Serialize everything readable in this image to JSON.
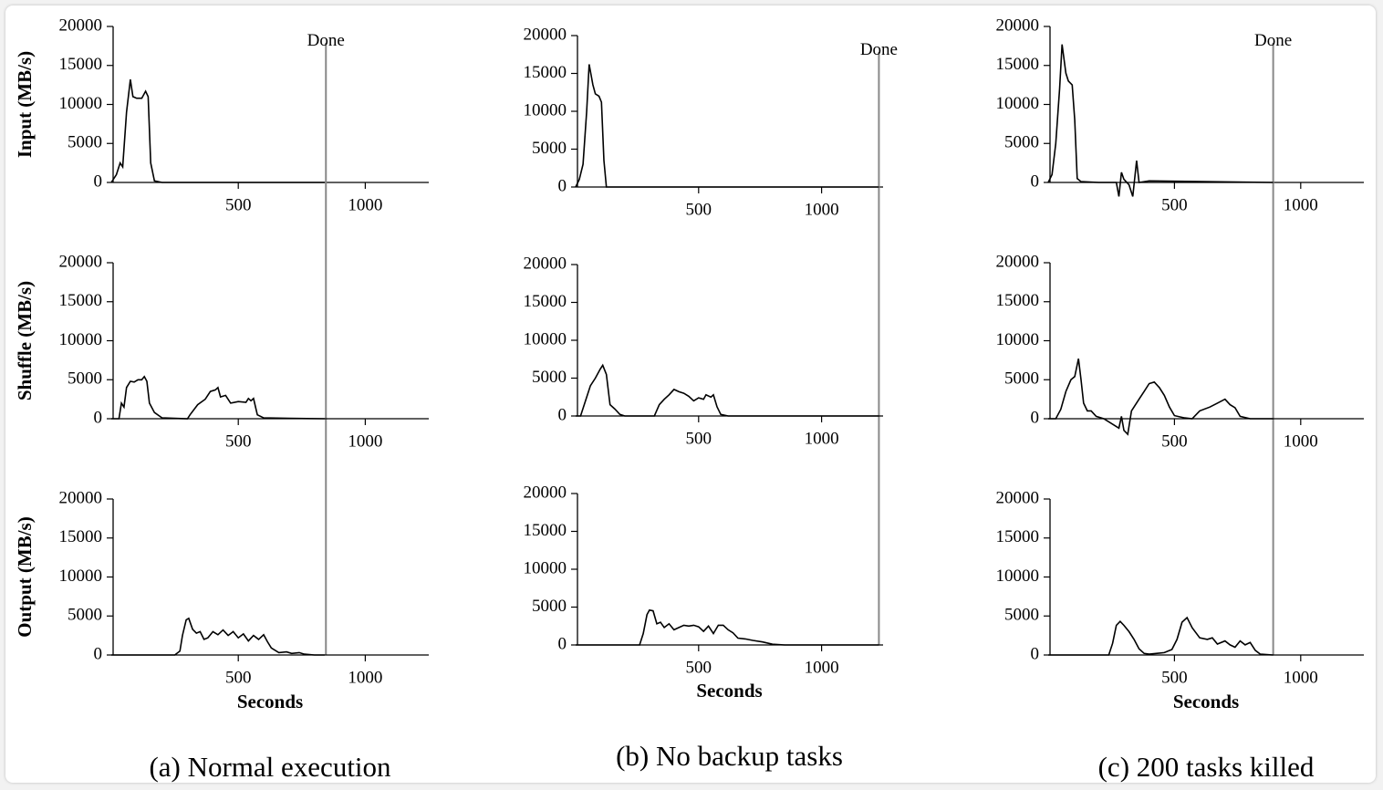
{
  "chart_data": [
    {
      "type": "line",
      "ylabel": "Input (MB/s)",
      "annotation": {
        "text": "Done",
        "x": 845
      },
      "x": [
        0,
        20,
        35,
        45,
        60,
        75,
        85,
        100,
        120,
        135,
        145,
        155,
        170,
        200,
        840
      ],
      "series": [
        {
          "color": "#000000",
          "values": [
            0,
            1000,
            2500,
            2000,
            9000,
            13200,
            11000,
            10800,
            10800,
            11700,
            11000,
            2500,
            200,
            0,
            0
          ]
        }
      ],
      "xlim": [
        0,
        1250
      ],
      "xticks": [
        500,
        1000
      ],
      "ylim": [
        0,
        20000
      ],
      "yticks": [
        0,
        5000,
        10000,
        15000,
        20000
      ]
    },
    {
      "type": "line",
      "ylabel": "Shuffle (MB/s)",
      "x": [
        0,
        30,
        40,
        50,
        60,
        75,
        90,
        105,
        120,
        130,
        140,
        150,
        170,
        200,
        300,
        310,
        340,
        370,
        390,
        410,
        420,
        430,
        450,
        470,
        500,
        530,
        540,
        550,
        560,
        575,
        600,
        700,
        840
      ],
      "series": [
        {
          "color": "#000000",
          "values": [
            0,
            0,
            2000,
            1500,
            4000,
            4800,
            4700,
            5000,
            5000,
            5400,
            4800,
            2000,
            800,
            100,
            0,
            500,
            1800,
            2500,
            3500,
            3700,
            4000,
            2800,
            3000,
            2000,
            2200,
            2100,
            2600,
            2300,
            2600,
            500,
            100,
            50,
            0
          ]
        }
      ],
      "xlim": [
        0,
        1250
      ],
      "xticks": [
        500,
        1000
      ],
      "ylim": [
        0,
        20000
      ],
      "yticks": [
        0,
        5000,
        10000,
        15000,
        20000
      ]
    },
    {
      "type": "line",
      "ylabel": "Output (MB/s)",
      "xlabel": "Seconds",
      "caption": "(a) Normal execution",
      "x": [
        0,
        250,
        270,
        280,
        295,
        305,
        320,
        335,
        350,
        365,
        380,
        400,
        420,
        440,
        460,
        480,
        500,
        520,
        540,
        560,
        580,
        600,
        615,
        630,
        660,
        690,
        710,
        740,
        760,
        800,
        840
      ],
      "series": [
        {
          "color": "#000000",
          "values": [
            0,
            0,
            500,
            2500,
            4500,
            4700,
            3300,
            2800,
            3000,
            2000,
            2200,
            3000,
            2600,
            3200,
            2500,
            3000,
            2200,
            2700,
            1800,
            2500,
            2000,
            2600,
            1700,
            900,
            300,
            400,
            200,
            300,
            100,
            0,
            0
          ]
        }
      ],
      "xlim": [
        0,
        1250
      ],
      "xticks": [
        500,
        1000
      ],
      "ylim": [
        0,
        20000
      ],
      "yticks": [
        0,
        5000,
        10000,
        15000,
        20000
      ]
    },
    {
      "type": "line",
      "annotation": {
        "text": "Done",
        "x": 1233
      },
      "x": [
        0,
        15,
        30,
        45,
        55,
        70,
        80,
        95,
        105,
        115,
        125,
        1233
      ],
      "series": [
        {
          "color": "#000000",
          "values": [
            0,
            1000,
            3000,
            10000,
            16200,
            13500,
            12300,
            12000,
            11200,
            3500,
            0,
            0
          ]
        }
      ],
      "xlim": [
        0,
        1250
      ],
      "xticks": [
        500,
        1000
      ],
      "ylim": [
        0,
        20000
      ],
      "yticks": [
        0,
        5000,
        10000,
        15000,
        20000
      ]
    },
    {
      "type": "line",
      "x": [
        0,
        20,
        40,
        60,
        80,
        100,
        110,
        125,
        140,
        160,
        180,
        200,
        320,
        340,
        360,
        380,
        400,
        420,
        440,
        460,
        480,
        500,
        520,
        530,
        550,
        560,
        575,
        590,
        620,
        1233
      ],
      "series": [
        {
          "color": "#000000",
          "values": [
            0,
            0,
            2000,
            4000,
            5000,
            6200,
            6700,
            5500,
            1500,
            900,
            200,
            0,
            0,
            1500,
            2200,
            2800,
            3500,
            3200,
            3000,
            2600,
            2000,
            2400,
            2200,
            2800,
            2500,
            2800,
            1200,
            200,
            0,
            0
          ]
        }
      ],
      "xlim": [
        0,
        1250
      ],
      "xticks": [
        500,
        1000
      ],
      "ylim": [
        0,
        20000
      ],
      "yticks": [
        0,
        5000,
        10000,
        15000,
        20000
      ]
    },
    {
      "type": "line",
      "xlabel": "Seconds",
      "caption": "(b) No backup tasks",
      "x": [
        0,
        260,
        275,
        290,
        300,
        315,
        330,
        345,
        360,
        380,
        400,
        420,
        440,
        460,
        480,
        500,
        520,
        540,
        560,
        580,
        600,
        620,
        640,
        660,
        690,
        720,
        760,
        800,
        850,
        1233
      ],
      "series": [
        {
          "color": "#000000",
          "values": [
            0,
            0,
            1500,
            4000,
            4600,
            4500,
            2800,
            3000,
            2300,
            2800,
            2000,
            2300,
            2600,
            2500,
            2600,
            2400,
            1800,
            2500,
            1500,
            2600,
            2600,
            2000,
            1600,
            900,
            800,
            600,
            400,
            100,
            0,
            0
          ]
        }
      ],
      "xlim": [
        0,
        1250
      ],
      "xticks": [
        500,
        1000
      ],
      "ylim": [
        0,
        20000
      ],
      "yticks": [
        0,
        5000,
        10000,
        15000,
        20000
      ]
    },
    {
      "type": "line",
      "annotation": {
        "text": "Done",
        "x": 891
      },
      "x": [
        0,
        15,
        30,
        45,
        55,
        70,
        80,
        95,
        105,
        115,
        130,
        200,
        270,
        280,
        290,
        300,
        320,
        335,
        350,
        360,
        400,
        891
      ],
      "series": [
        {
          "color": "#000000",
          "values": [
            0,
            1000,
            5000,
            12000,
            17700,
            14000,
            13000,
            12500,
            8000,
            500,
            100,
            0,
            0,
            -1800,
            1300,
            400,
            -300,
            -1800,
            2800,
            0,
            200,
            0
          ]
        }
      ],
      "xlim": [
        0,
        1250
      ],
      "xticks": [
        500,
        1000
      ],
      "ylim": [
        0,
        20000
      ],
      "yticks": [
        0,
        5000,
        10000,
        15000,
        20000
      ]
    },
    {
      "type": "line",
      "x": [
        0,
        30,
        50,
        70,
        90,
        105,
        120,
        130,
        140,
        155,
        170,
        190,
        220,
        280,
        290,
        300,
        315,
        330,
        360,
        380,
        400,
        420,
        440,
        460,
        480,
        500,
        540,
        570,
        600,
        640,
        670,
        700,
        720,
        740,
        760,
        800,
        891
      ],
      "series": [
        {
          "color": "#000000",
          "values": [
            0,
            0,
            1200,
            3500,
            5000,
            5400,
            7700,
            5000,
            2000,
            1000,
            1000,
            300,
            0,
            -1200,
            300,
            -1500,
            -2000,
            1000,
            2500,
            3500,
            4500,
            4700,
            4000,
            3000,
            1500,
            400,
            100,
            0,
            1000,
            1500,
            2000,
            2500,
            1800,
            1400,
            300,
            0,
            0
          ]
        }
      ],
      "xlim": [
        0,
        1250
      ],
      "xticks": [
        500,
        1000
      ],
      "ylim": [
        0,
        20000
      ],
      "yticks": [
        0,
        5000,
        10000,
        15000,
        20000
      ]
    },
    {
      "type": "line",
      "xlabel": "Seconds",
      "caption": "(c) 200 tasks killed",
      "x": [
        0,
        240,
        255,
        270,
        285,
        300,
        320,
        340,
        360,
        380,
        400,
        460,
        490,
        510,
        530,
        550,
        570,
        600,
        630,
        650,
        670,
        700,
        720,
        740,
        760,
        780,
        800,
        820,
        840,
        891
      ],
      "series": [
        {
          "color": "#000000",
          "values": [
            0,
            0,
            1500,
            3800,
            4300,
            3800,
            3000,
            2000,
            800,
            200,
            100,
            300,
            700,
            2000,
            4200,
            4800,
            3500,
            2200,
            2000,
            2200,
            1400,
            1800,
            1300,
            1000,
            1800,
            1300,
            1600,
            600,
            100,
            0
          ]
        }
      ],
      "xlim": [
        0,
        1250
      ],
      "xticks": [
        500,
        1000
      ],
      "ylim": [
        0,
        20000
      ],
      "yticks": [
        0,
        5000,
        10000,
        15000,
        20000
      ]
    }
  ]
}
